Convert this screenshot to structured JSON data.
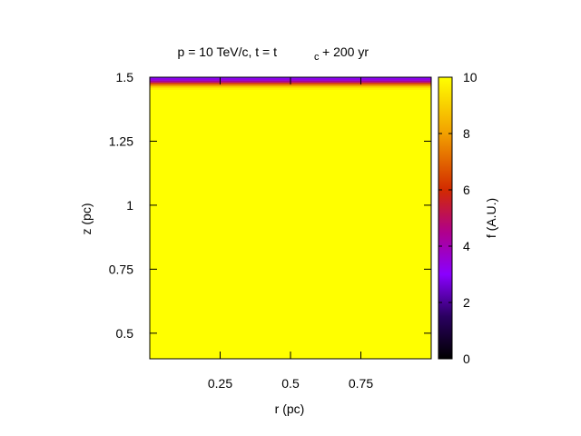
{
  "chart_data": {
    "type": "heatmap",
    "title_main": "p = 10 TeV/c, t = t",
    "title_sub": "c",
    "title_tail": " + 200 yr",
    "xlabel": "r (pc)",
    "ylabel": "z (pc)",
    "colorbar_label": "f (A.U.)",
    "xlim": [
      0,
      1
    ],
    "ylim": [
      0.4,
      1.5
    ],
    "clim": [
      0,
      10
    ],
    "x_ticks": [
      {
        "value": 0.25,
        "label": "0.25"
      },
      {
        "value": 0.5,
        "label": "0.5"
      },
      {
        "value": 0.75,
        "label": "0.75"
      }
    ],
    "y_ticks": [
      {
        "value": 0.5,
        "label": "0.5"
      },
      {
        "value": 0.75,
        "label": "0.75"
      },
      {
        "value": 1.0,
        "label": "1"
      },
      {
        "value": 1.25,
        "label": "1.25"
      },
      {
        "value": 1.5,
        "label": "1.5"
      }
    ],
    "cbar_ticks": [
      {
        "value": 0,
        "label": "0"
      },
      {
        "value": 2,
        "label": "2"
      },
      {
        "value": 4,
        "label": "4"
      },
      {
        "value": 6,
        "label": "6"
      },
      {
        "value": 8,
        "label": "8"
      },
      {
        "value": 10,
        "label": "10"
      }
    ],
    "colormap": [
      "#000000",
      "#4a009a",
      "#8a00ff",
      "#c2003a",
      "#e06000",
      "#f7c800",
      "#ffff00"
    ],
    "field": {
      "background_value": 10,
      "top_band": [
        {
          "z": [
            1.493,
            1.5
          ],
          "value": 3.2
        },
        {
          "z": [
            1.486,
            1.493
          ],
          "value": 3.6
        },
        {
          "z": [
            1.479,
            1.486
          ],
          "value": 4.2
        },
        {
          "z": [
            1.472,
            1.479
          ],
          "value": 6.0
        },
        {
          "z": [
            1.465,
            1.472
          ],
          "value": 7.4
        },
        {
          "z": [
            1.458,
            1.465
          ],
          "value": 8.6
        },
        {
          "z": [
            1.451,
            1.458
          ],
          "value": 9.5
        }
      ],
      "blobs": [
        {
          "r": 0.0,
          "z": 1.06,
          "radius_r": 0.33,
          "radius_z": 0.55,
          "min_value": 9.55
        },
        {
          "r": 0.0,
          "z": 0.67,
          "radius_r": 0.12,
          "radius_z": 0.16,
          "min_value": 9.35
        }
      ]
    }
  }
}
